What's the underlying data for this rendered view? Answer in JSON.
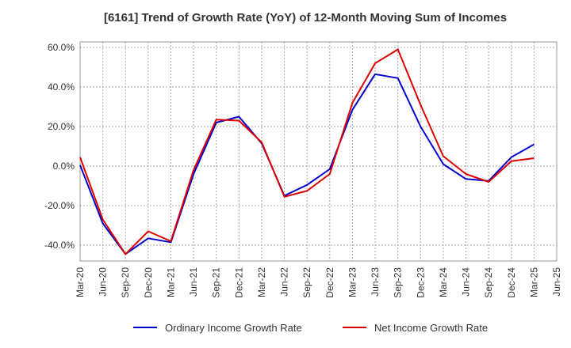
{
  "chart_data": {
    "type": "line",
    "title": "[6161]  Trend of Growth Rate (YoY) of 12-Month Moving Sum of Incomes",
    "xlabel": "",
    "ylabel": "",
    "x_ticks": [
      "Mar-20",
      "Jun-20",
      "Sep-20",
      "Dec-20",
      "Mar-21",
      "Jun-21",
      "Sep-21",
      "Dec-21",
      "Mar-22",
      "Jun-22",
      "Sep-22",
      "Dec-22",
      "Mar-23",
      "Jun-23",
      "Sep-23",
      "Dec-23",
      "Mar-24",
      "Jun-24",
      "Sep-24",
      "Dec-24",
      "Mar-25",
      "Jun-25"
    ],
    "y_ticks": [
      "60.0%",
      "40.0%",
      "20.0%",
      "0.0%",
      "-20.0%",
      "-40.0%"
    ],
    "y_tick_values": [
      60,
      40,
      20,
      0,
      -20,
      -40
    ],
    "ylim": [
      -48,
      62
    ],
    "grid": true,
    "legend_position": "bottom",
    "series": [
      {
        "name": "Ordinary Income Growth Rate",
        "color": "#0000cc",
        "values": [
          0.5,
          -29,
          -44.5,
          -36.5,
          -38.5,
          -4,
          22,
          25,
          11.5,
          -15,
          -9.5,
          -1.5,
          28.5,
          46.5,
          44.5,
          20,
          1,
          -6.5,
          -7.5,
          4.5,
          11
        ]
      },
      {
        "name": "Net Income Growth Rate",
        "color": "#dd0000",
        "values": [
          4.5,
          -27,
          -44.5,
          -33,
          -38,
          -2,
          23.5,
          23,
          12,
          -15.5,
          -12.5,
          -4,
          32,
          52,
          59,
          31,
          5,
          -4,
          -8,
          2.5,
          4
        ]
      }
    ]
  }
}
